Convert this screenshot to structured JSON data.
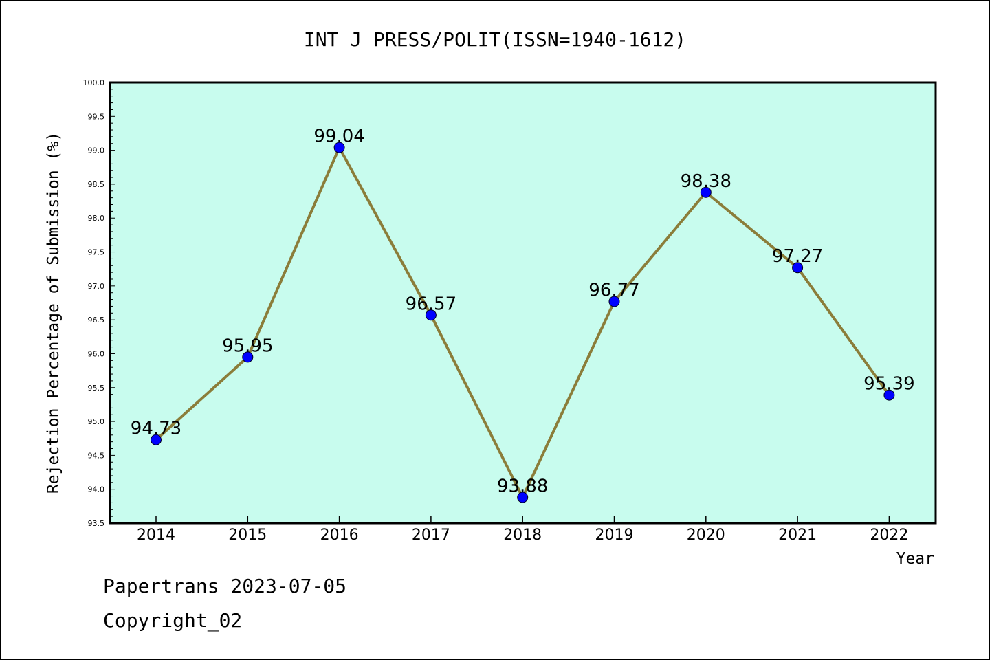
{
  "chart_data": {
    "type": "line",
    "title": "INT J PRESS/POLIT(ISSN=1940-1612)",
    "xlabel": "Year",
    "ylabel": "Rejection Percentage of Submission (%)",
    "categories": [
      "2014",
      "2015",
      "2016",
      "2017",
      "2018",
      "2019",
      "2020",
      "2021",
      "2022"
    ],
    "series": [
      {
        "values": [
          94.73,
          95.95,
          99.04,
          96.57,
          93.88,
          96.77,
          98.38,
          97.27,
          95.39
        ],
        "labels": [
          "94.73",
          "95.95",
          "99.04",
          "96.57",
          "93.88",
          "96.77",
          "98.38",
          "97.27",
          "95.39"
        ]
      }
    ],
    "ylim": [
      93.5,
      100.0
    ],
    "yticks": [
      "93.5",
      "94.0",
      "94.5",
      "95.0",
      "95.5",
      "96.0",
      "96.5",
      "97.0",
      "97.5",
      "98.0",
      "98.5",
      "99.0",
      "99.5",
      "100.0"
    ],
    "grid": false,
    "colors": {
      "plot_background": "#c8fcee",
      "line": "#8b7d3a",
      "marker": "#0000ff"
    }
  },
  "footer": {
    "line1": "Papertrans 2023-07-05",
    "line2": "Copyright_02"
  }
}
